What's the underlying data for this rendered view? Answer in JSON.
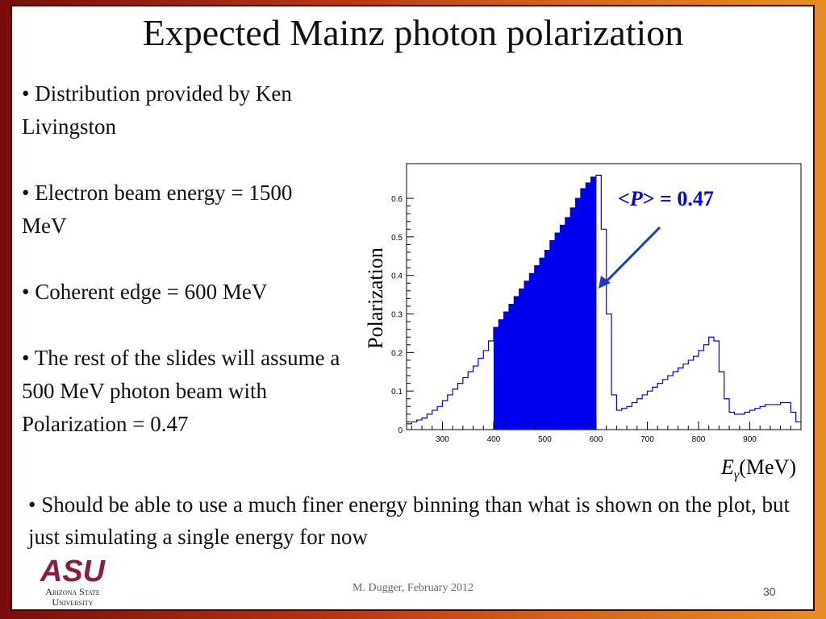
{
  "slide": {
    "title": "Expected Mainz photon polarization",
    "bullets": [
      "• Distribution provided by Ken Livingston",
      "• Electron beam energy = 1500 MeV",
      "• Coherent edge = 600 MeV",
      "• The rest of the slides will assume a 500 MeV photon beam with Polarization = 0.47"
    ],
    "bottom_bullet": "• Should be able to use a much finer energy binning than what is shown on the plot, but just simulating a single energy for now",
    "footer": "M. Dugger, February 2012",
    "page_number": "30",
    "logo": {
      "line1": "Arizona State",
      "line2": "University",
      "mark": "ASU",
      "color": "#8c1d40"
    }
  },
  "chart_data": {
    "type": "area",
    "title": "",
    "xlabel_var": "E",
    "xlabel_sub": "γ",
    "xlabel_unit": "(MeV)",
    "ylabel": "Polarization",
    "annotation": {
      "prefix": "<",
      "var": "P",
      "suffix": "> = 0.47"
    },
    "xlim": [
      230,
      1000
    ],
    "ylim": [
      0,
      0.69
    ],
    "x_ticks": [
      300,
      400,
      500,
      600,
      700,
      800,
      900
    ],
    "y_ticks": [
      0,
      0.1,
      0.2,
      0.3,
      0.4,
      0.5,
      0.6
    ],
    "y_tick_labels": [
      "0",
      "0.1",
      "0.2",
      "0.3",
      "0.4",
      "0.5",
      "0.6"
    ],
    "shaded_range": [
      400,
      600
    ],
    "colors": {
      "line": "#0000ee",
      "fill": "#0000ee",
      "arrow": "#1a3cc8",
      "annotation": "#0000ee"
    },
    "series": [
      {
        "x": [
          230,
          240,
          250,
          260,
          270,
          280,
          290,
          300,
          310,
          320,
          330,
          340,
          350,
          360,
          370,
          380,
          390,
          400,
          410,
          420,
          430,
          440,
          450,
          460,
          470,
          480,
          490,
          500,
          510,
          520,
          530,
          540,
          550,
          560,
          570,
          580,
          590,
          600,
          610,
          620,
          630,
          640,
          650,
          660,
          670,
          680,
          690,
          700,
          710,
          720,
          730,
          740,
          750,
          760,
          770,
          780,
          790,
          800,
          810,
          820,
          830,
          840,
          850,
          860,
          870,
          880,
          890,
          900,
          910,
          920,
          930,
          940,
          950,
          960,
          970,
          980,
          990
        ],
        "y": [
          0.015,
          0.02,
          0.025,
          0.03,
          0.04,
          0.05,
          0.06,
          0.075,
          0.09,
          0.105,
          0.12,
          0.135,
          0.15,
          0.165,
          0.185,
          0.205,
          0.23,
          0.265,
          0.285,
          0.305,
          0.325,
          0.345,
          0.365,
          0.385,
          0.405,
          0.425,
          0.445,
          0.465,
          0.49,
          0.51,
          0.53,
          0.55,
          0.575,
          0.6,
          0.625,
          0.64,
          0.655,
          0.66,
          0.52,
          0.3,
          0.09,
          0.05,
          0.055,
          0.06,
          0.07,
          0.08,
          0.09,
          0.1,
          0.11,
          0.12,
          0.13,
          0.14,
          0.15,
          0.16,
          0.17,
          0.18,
          0.19,
          0.205,
          0.22,
          0.24,
          0.23,
          0.15,
          0.08,
          0.045,
          0.04,
          0.04,
          0.045,
          0.05,
          0.055,
          0.06,
          0.065,
          0.065,
          0.065,
          0.07,
          0.07,
          0.045,
          0.02
        ]
      }
    ]
  }
}
